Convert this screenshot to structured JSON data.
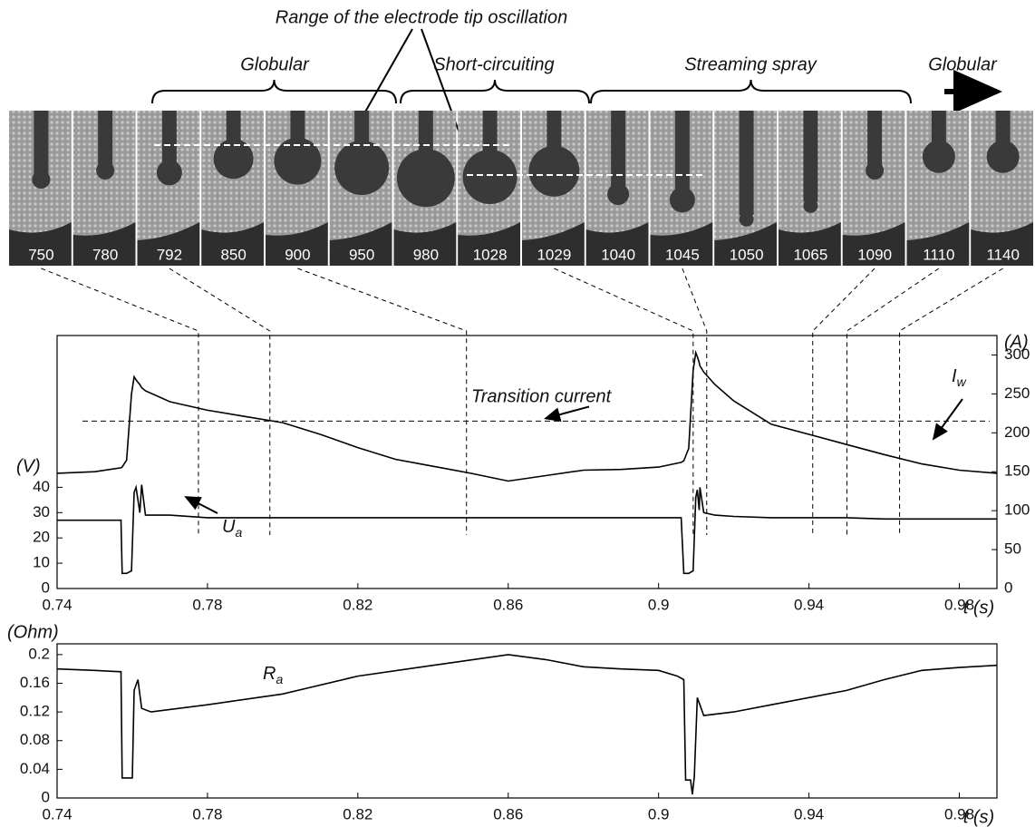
{
  "image_strip": {
    "title": "Range of the electrode tip oscillation",
    "modes": [
      "Globular",
      "Short-circuiting",
      "Streaming spray",
      "Globular"
    ],
    "frames": [
      750,
      780,
      792,
      850,
      900,
      950,
      980,
      1028,
      1029,
      1040,
      1045,
      1050,
      1065,
      1090,
      1110,
      1140
    ],
    "times": [
      0.7776,
      null,
      0.7966,
      null,
      0.8489,
      null,
      null,
      null,
      0.9092,
      null,
      0.9128,
      null,
      null,
      0.941,
      0.9501,
      0.9641
    ]
  },
  "chart_data": [
    {
      "type": "line",
      "x_label": "t (s)",
      "y_label": "(V)",
      "y2_label": "(A)",
      "x": [
        0.74,
        0.75,
        0.757,
        0.7573,
        0.7585,
        0.7598,
        0.7605,
        0.761,
        0.762,
        0.7625,
        0.7635,
        0.77,
        0.78,
        0.79,
        0.8,
        0.81,
        0.82,
        0.83,
        0.84,
        0.85,
        0.86,
        0.87,
        0.88,
        0.89,
        0.9,
        0.906,
        0.9067,
        0.908,
        0.9092,
        0.9099,
        0.9103,
        0.9108,
        0.911,
        0.912,
        0.915,
        0.92,
        0.93,
        0.94,
        0.95,
        0.96,
        0.97,
        0.98,
        0.99
      ],
      "series": [
        {
          "name": "Iw",
          "color": "#000000",
          "axis": "y2",
          "values": [
            148,
            150,
            155,
            156,
            165,
            250,
            272,
            268,
            262,
            258,
            254,
            240,
            229,
            221,
            213,
            198,
            181,
            166,
            157,
            148,
            138,
            145,
            152,
            153,
            156,
            162,
            164,
            180,
            280,
            303,
            298,
            290,
            286,
            278,
            262,
            241,
            211,
            198,
            185,
            172,
            160,
            152,
            148
          ]
        },
        {
          "name": "Ua",
          "color": "#000000",
          "axis": "y",
          "values": [
            27,
            27,
            27,
            6,
            6,
            7,
            38,
            40,
            30,
            41,
            29,
            29,
            28,
            28,
            28,
            28,
            28,
            28,
            28,
            28,
            28,
            28,
            28,
            28,
            28,
            28,
            6,
            6,
            7,
            36,
            39,
            31,
            40,
            30,
            29,
            28.5,
            28,
            28,
            28,
            27.5,
            27.5,
            27.5,
            27.5
          ]
        }
      ],
      "reference_lines": [
        {
          "value": 215,
          "axis": "y2",
          "label": "Transition current"
        }
      ],
      "xlim": [
        0.74,
        0.99
      ],
      "xticks": [
        0.74,
        0.78,
        0.82,
        0.86,
        0.9,
        0.94,
        0.98
      ],
      "ylim": [
        0,
        100
      ],
      "yticks": [
        0,
        10,
        20,
        30,
        40
      ],
      "y2lim": [
        0,
        325
      ],
      "y2ticks": [
        0,
        50,
        100,
        150,
        200,
        250,
        300
      ]
    },
    {
      "type": "line",
      "x_label": "t (s)",
      "y_label": "(Ohm)",
      "x": [
        0.74,
        0.75,
        0.757,
        0.7573,
        0.76,
        0.7605,
        0.7615,
        0.7625,
        0.765,
        0.78,
        0.8,
        0.82,
        0.84,
        0.86,
        0.87,
        0.88,
        0.89,
        0.9,
        0.905,
        0.9067,
        0.9072,
        0.9085,
        0.909,
        0.9095,
        0.9103,
        0.912,
        0.92,
        0.93,
        0.94,
        0.95,
        0.96,
        0.97,
        0.98,
        0.99
      ],
      "series": [
        {
          "name": "Ra",
          "color": "#000000",
          "values": [
            0.18,
            0.178,
            0.176,
            0.028,
            0.028,
            0.15,
            0.165,
            0.125,
            0.12,
            0.13,
            0.145,
            0.17,
            0.185,
            0.2,
            0.193,
            0.183,
            0.18,
            0.178,
            0.17,
            0.165,
            0.025,
            0.025,
            0.005,
            0.03,
            0.14,
            0.115,
            0.12,
            0.13,
            0.14,
            0.15,
            0.165,
            0.178,
            0.182,
            0.185
          ]
        }
      ],
      "xlim": [
        0.74,
        0.99
      ],
      "xticks": [
        0.74,
        0.78,
        0.82,
        0.86,
        0.9,
        0.94,
        0.98
      ],
      "ylim": [
        0,
        0.215
      ],
      "yticks": [
        0,
        0.04,
        0.08,
        0.12,
        0.16,
        0.2
      ]
    }
  ]
}
